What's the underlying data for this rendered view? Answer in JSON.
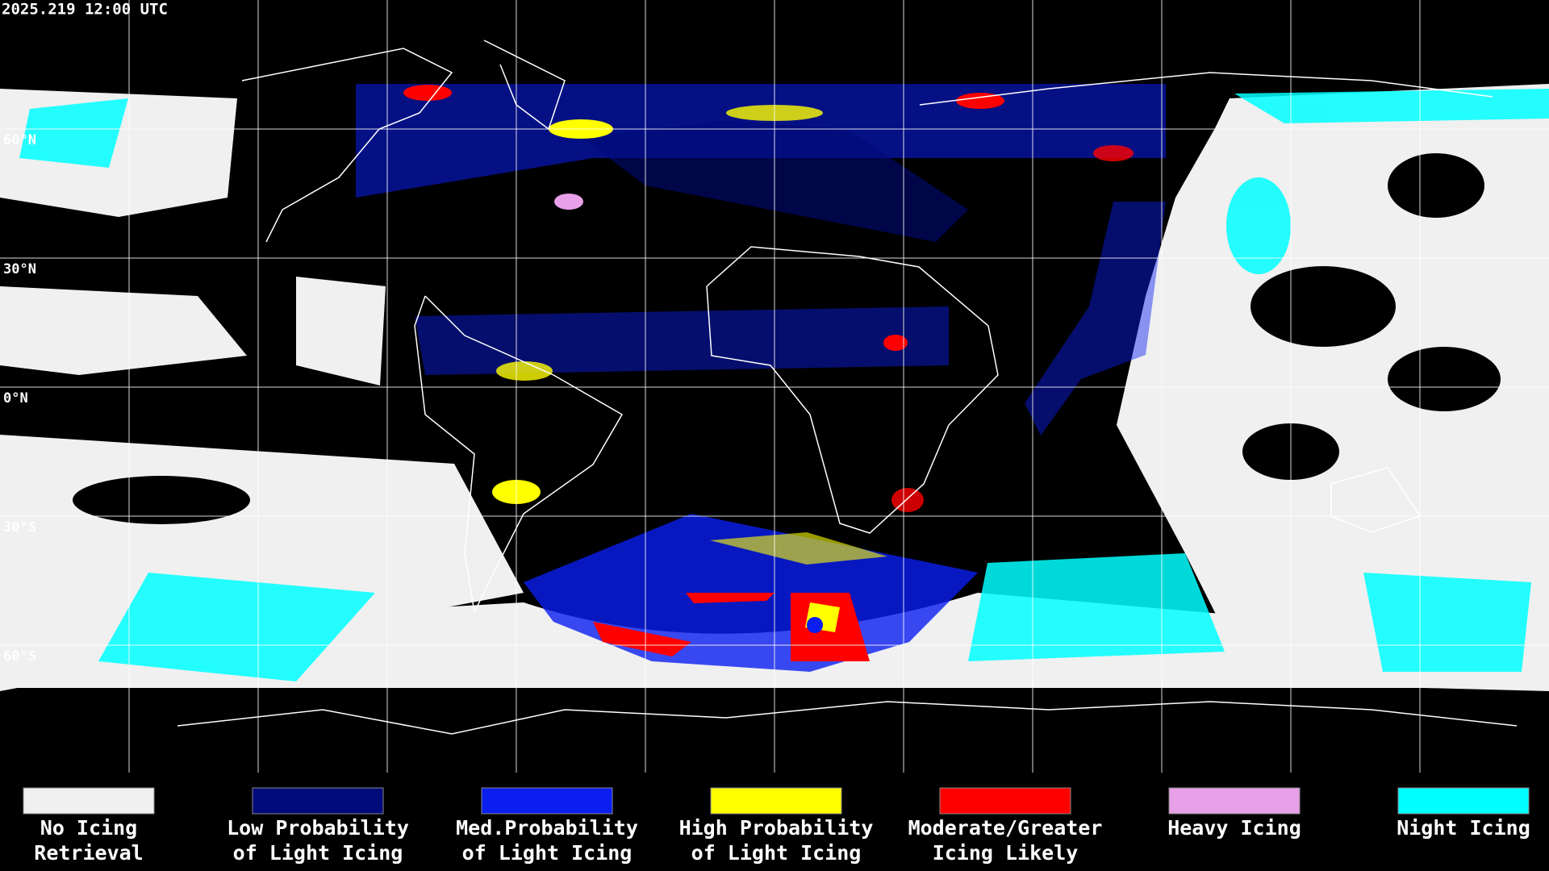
{
  "header": {
    "title": "2025.219 12:00 UTC"
  },
  "map": {
    "latitude_labels": [
      "60°N",
      "30°N",
      "0°N",
      "30°S",
      "60°S"
    ]
  },
  "legend": [
    {
      "label_lines": [
        "No Icing",
        "Retrieval"
      ],
      "color": "#f0f0f0"
    },
    {
      "label_lines": [
        "Low Probability",
        "of Light Icing"
      ],
      "color": "#000a78"
    },
    {
      "label_lines": [
        "Med.Probability",
        "of Light Icing"
      ],
      "color": "#0a1ef0"
    },
    {
      "label_lines": [
        "High Probability",
        "of Light Icing"
      ],
      "color": "#ffff00"
    },
    {
      "label_lines": [
        "Moderate/Greater",
        "Icing Likely"
      ],
      "color": "#ff0000"
    },
    {
      "label_lines": [
        "Heavy Icing"
      ],
      "color": "#e8a0e8"
    },
    {
      "label_lines": [
        "Night Icing"
      ],
      "color": "#00ffff"
    }
  ]
}
